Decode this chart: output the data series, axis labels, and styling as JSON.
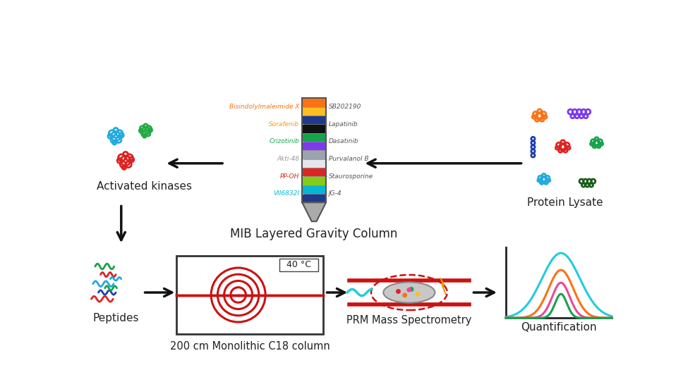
{
  "background_color": "#ffffff",
  "mib_column_colors": [
    "#f97316",
    "#fbbf24",
    "#1e3a8a",
    "#111111",
    "#16a34a",
    "#7c3aed",
    "#9ca3af",
    "#e5e7eb",
    "#dc2626",
    "#84cc16",
    "#06b6d4",
    "#1e3a8a"
  ],
  "mib_label_left": [
    "Bisindolylmaleimide X",
    "Sorafenib",
    "Crizotinib",
    "Akti-46",
    "PP-OH",
    "VII6832I"
  ],
  "mib_label_left_colors": [
    "#f97316",
    "#f59e0b",
    "#16a34a",
    "#999999",
    "#dc2626",
    "#06b6d4"
  ],
  "mib_label_right": [
    "SB202190",
    "Lapatinib",
    "Dasatinib",
    "Purvalanol B",
    "Staurosporine",
    "JG-4"
  ],
  "mib_title": "MIB Layered Gravity Column",
  "step_labels": [
    "Peptides",
    "200 cm Monolithic C18 column",
    "PRM Mass Spectrometry",
    "Quantification"
  ],
  "section_labels": [
    "Activated kinases",
    "Protein Lysate"
  ],
  "arrow_color": "#111111",
  "red_line_color": "#cc1111",
  "cyan_line_color": "#22ccdd",
  "quant_colors": [
    "#22ccdd",
    "#f97316",
    "#ec4899",
    "#16a34a"
  ],
  "kinase_colors": [
    "#22aadd",
    "#22aa44",
    "#dd2222"
  ],
  "lysate_colors": [
    "#f97316",
    "#7c3aed",
    "#dd2222",
    "#1e40af",
    "#22aadd",
    "#16a34a",
    "#cc44aa",
    "#886600"
  ],
  "peptide_colors": [
    "#16a34a",
    "#dd2222",
    "#22aadd",
    "#1e40af"
  ],
  "temp_label": "40 °C"
}
